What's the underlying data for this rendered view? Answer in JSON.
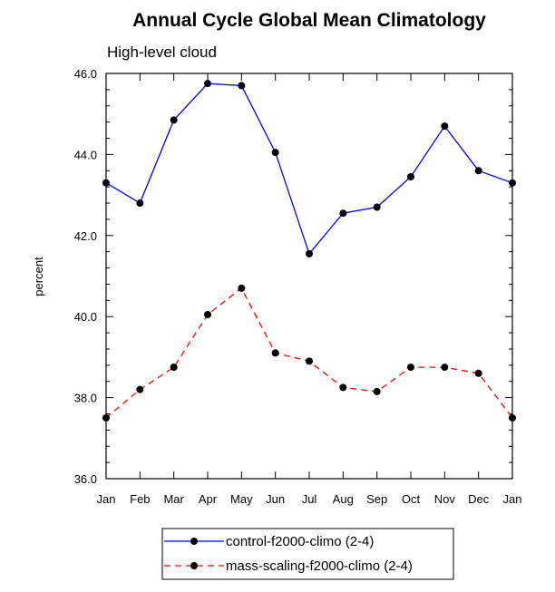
{
  "chart_data": {
    "type": "line",
    "title": "Annual Cycle Global Mean Climatology",
    "subtitle": "High-level cloud",
    "xlabel": "",
    "ylabel": "percent",
    "categories": [
      "Jan",
      "Feb",
      "Mar",
      "Apr",
      "May",
      "Jun",
      "Jul",
      "Aug",
      "Sep",
      "Oct",
      "Nov",
      "Dec",
      "Jan"
    ],
    "ylim": [
      36.0,
      46.0
    ],
    "yticks": [
      "36.0",
      "38.0",
      "40.0",
      "42.0",
      "44.0",
      "46.0"
    ],
    "series": [
      {
        "name": "control-f2000-climo (2-4)",
        "color": "#0000ff",
        "dash": "solid",
        "values": [
          43.3,
          42.8,
          44.85,
          45.75,
          45.7,
          44.05,
          41.55,
          42.55,
          42.7,
          43.45,
          44.7,
          43.6,
          43.3
        ]
      },
      {
        "name": "mass-scaling-f2000-climo (2-4)",
        "color": "#ff0000",
        "dash": "dashed",
        "values": [
          37.5,
          38.2,
          38.75,
          40.05,
          40.7,
          39.1,
          38.9,
          38.25,
          38.15,
          38.75,
          38.75,
          38.6,
          37.5
        ]
      }
    ],
    "grid": false,
    "legend": "bottom-center"
  }
}
